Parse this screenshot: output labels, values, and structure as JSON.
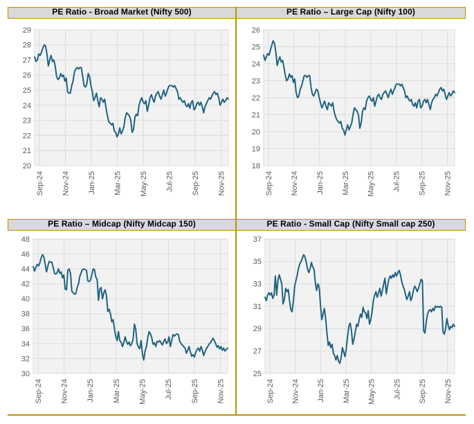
{
  "theme": {
    "accent_border_color": "#BF8F00",
    "titlebar_bg": "#D9D9D9",
    "line_color": "#1F6380",
    "plot_bg": "#F2F2F2",
    "grid_color": "#DBDBDB",
    "tick_label_color": "#595959",
    "title_text_color": "#000000",
    "page_bg": "#FFFFFF"
  },
  "chart_data": [
    {
      "type": "line",
      "title": "PE Ratio - Broad Market (Nifty 500)",
      "xlabel": "",
      "ylabel": "",
      "ylim": [
        20,
        29
      ],
      "y_ticks": [
        20,
        21,
        22,
        23,
        24,
        25,
        26,
        27,
        28,
        29
      ],
      "x_tick_labels": [
        "Sep-24",
        "Nov-24",
        "Jan-25",
        "Mar-25",
        "May-25",
        "Jul-25",
        "Sep-25",
        "Nov-25"
      ],
      "grid": "on",
      "legend": "none",
      "values": [
        27.2,
        26.9,
        27.0,
        27.4,
        27.3,
        27.5,
        27.8,
        28.0,
        27.9,
        27.4,
        26.6,
        27.0,
        27.3,
        26.9,
        27.0,
        26.6,
        25.9,
        25.7,
        25.8,
        26.1,
        25.9,
        26.0,
        25.6,
        25.8,
        24.9,
        24.8,
        24.8,
        25.3,
        25.6,
        26.2,
        26.4,
        26.5,
        26.4,
        26.5,
        26.5,
        25.9,
        25.3,
        25.2,
        25.4,
        26.1,
        25.9,
        25.3,
        24.9,
        24.3,
        24.5,
        24.8,
        24.3,
        23.9,
        24.5,
        24.4,
        24.2,
        24.4,
        23.8,
        23.3,
        22.9,
        22.8,
        22.7,
        22.8,
        22.3,
        22.2,
        21.9,
        22.1,
        22.5,
        22.1,
        22.3,
        22.6,
        23.2,
        23.5,
        23.4,
        23.3,
        23.0,
        22.2,
        22.4,
        23.2,
        23.4,
        23.3,
        24.0,
        24.3,
        24.5,
        24.2,
        24.1,
        24.3,
        23.6,
        24.0,
        24.5,
        24.7,
        24.4,
        24.2,
        24.6,
        24.8,
        24.9,
        24.6,
        24.4,
        24.7,
        25.0,
        24.6,
        24.8,
        25.1,
        25.3,
        25.3,
        25.3,
        25.2,
        25.3,
        25.1,
        24.9,
        24.4,
        24.5,
        24.3,
        24.2,
        24.3,
        24.0,
        23.9,
        24.1,
        23.8,
        24.2,
        24.3,
        23.7,
        23.8,
        24.1,
        24.2,
        24.0,
        24.2,
        23.9,
        23.5,
        23.9,
        24.1,
        24.3,
        24.5,
        24.4,
        24.6,
        24.8,
        24.9,
        24.7,
        24.8,
        24.5,
        24.0,
        24.2,
        24.4,
        24.2,
        24.3,
        24.5,
        24.4
      ]
    },
    {
      "type": "line",
      "title": "PE Ratio – Large Cap (Nifty 100)",
      "xlabel": "",
      "ylabel": "",
      "ylim": [
        18,
        26
      ],
      "y_ticks": [
        18,
        19,
        20,
        21,
        22,
        23,
        24,
        25,
        26
      ],
      "x_tick_labels": [
        "Sep-24",
        "Nov-24",
        "Jan-25",
        "Mar-25",
        "May-25",
        "Jul-25",
        "Sep-25",
        "Nov-25"
      ],
      "grid": "on",
      "legend": "none",
      "values": [
        24.5,
        24.2,
        24.4,
        24.6,
        24.5,
        24.8,
        25.1,
        25.35,
        25.2,
        24.7,
        23.9,
        24.2,
        24.4,
        24.1,
        24.2,
        23.8,
        23.3,
        23.0,
        23.1,
        23.4,
        23.2,
        23.3,
        22.9,
        23.1,
        22.3,
        22.0,
        22.1,
        22.5,
        22.7,
        23.0,
        23.3,
        23.3,
        23.2,
        23.3,
        23.3,
        22.6,
        22.2,
        22.1,
        22.3,
        22.5,
        22.4,
        22.0,
        21.7,
        21.4,
        21.6,
        21.8,
        21.5,
        21.3,
        21.7,
        21.6,
        21.5,
        21.7,
        21.2,
        20.9,
        20.7,
        20.6,
        20.5,
        20.6,
        20.2,
        20.1,
        19.8,
        20.1,
        20.4,
        20.1,
        20.3,
        20.5,
        21.0,
        21.4,
        21.3,
        21.2,
        21.0,
        20.2,
        20.5,
        21.2,
        21.4,
        21.3,
        21.8,
        22.0,
        22.1,
        21.9,
        21.8,
        22.0,
        21.5,
        21.8,
        22.1,
        22.2,
        22.0,
        21.9,
        22.2,
        22.3,
        22.4,
        22.2,
        22.0,
        22.3,
        22.5,
        22.2,
        22.4,
        22.6,
        22.8,
        22.8,
        22.8,
        22.7,
        22.8,
        22.6,
        22.4,
        22.0,
        22.1,
        21.9,
        21.8,
        21.9,
        21.6,
        21.5,
        21.7,
        21.4,
        21.8,
        21.9,
        21.4,
        21.5,
        21.8,
        21.9,
        21.7,
        21.9,
        21.6,
        21.3,
        21.7,
        21.9,
        22.0,
        22.2,
        22.1,
        22.3,
        22.5,
        22.6,
        22.4,
        22.5,
        22.2,
        21.9,
        22.1,
        22.3,
        22.1,
        22.2,
        22.4,
        22.3
      ]
    },
    {
      "type": "line",
      "title": "PE Ratio – Midcap (Nifty Midcap 150)",
      "xlabel": "",
      "ylabel": "",
      "ylim": [
        30,
        48
      ],
      "y_ticks": [
        30,
        32,
        34,
        36,
        38,
        40,
        42,
        44,
        46,
        48
      ],
      "x_tick_labels": [
        "Sep-24",
        "Nov-24",
        "Jan-25",
        "Mar-25",
        "May-25",
        "Jul-25",
        "Sep-25",
        "Nov-25"
      ],
      "grid": "on",
      "legend": "none",
      "values": [
        44.3,
        43.7,
        44.2,
        44.6,
        44.4,
        44.8,
        45.5,
        45.9,
        45.6,
        44.6,
        43.6,
        44.4,
        45.0,
        44.9,
        44.9,
        44.2,
        43.4,
        43.3,
        43.5,
        44.0,
        43.4,
        43.6,
        42.8,
        43.2,
        41.3,
        41.2,
        43.8,
        44.0,
        43.4,
        41.0,
        40.8,
        40.6,
        40.7,
        41.5,
        42.0,
        43.0,
        43.5,
        43.9,
        44.0,
        43.9,
        43.8,
        42.4,
        42.3,
        42.5,
        43.2,
        44.0,
        43.9,
        42.9,
        42.6,
        39.8,
        41.3,
        41.5,
        40.0,
        40.8,
        41.2,
        40.4,
        38.3,
        38.6,
        38.0,
        36.9,
        37.2,
        36.0,
        34.9,
        34.4,
        35.6,
        34.4,
        34.2,
        33.6,
        34.1,
        34.9,
        34.3,
        33.9,
        34.2,
        33.7,
        34.0,
        34.6,
        36.6,
        35.9,
        34.0,
        33.5,
        33.3,
        34.4,
        32.6,
        31.8,
        33.0,
        33.6,
        34.8,
        35.6,
        35.3,
        34.8,
        33.9,
        34.1,
        33.6,
        34.3,
        34.2,
        34.4,
        34.1,
        33.8,
        34.3,
        34.6,
        34.0,
        34.2,
        34.9,
        33.6,
        34.4,
        35.2,
        35.0,
        35.2,
        35.3,
        35.2,
        34.3,
        34.0,
        33.8,
        33.6,
        33.4,
        32.7,
        33.1,
        33.6,
        32.9,
        32.3,
        32.5,
        32.2,
        32.8,
        33.2,
        33.4,
        33.0,
        33.6,
        33.1,
        32.4,
        32.9,
        33.3,
        33.6,
        33.9,
        34.1,
        34.4,
        34.7,
        34.4,
        34.0,
        33.5,
        33.7,
        33.3,
        33.6,
        33.1,
        33.4,
        33.0,
        33.2,
        33.4
      ]
    },
    {
      "type": "line",
      "title": "PE Ratio - Small Cap (Nifty Small cap 250)",
      "xlabel": "",
      "ylabel": "",
      "ylim": [
        25,
        37
      ],
      "y_ticks": [
        25,
        27,
        29,
        31,
        33,
        35,
        37
      ],
      "x_tick_labels": [
        "Sep-24",
        "Nov-24",
        "Jan-25",
        "Mar-25",
        "May-25",
        "Jul-25",
        "Sep-25",
        "Nov-25"
      ],
      "grid": "on",
      "legend": "none",
      "values": [
        31.8,
        31.5,
        32.0,
        32.2,
        32.0,
        32.2,
        31.7,
        32.0,
        33.7,
        32.0,
        33.3,
        33.8,
        33.4,
        33.0,
        31.2,
        31.6,
        32.6,
        32.3,
        32.5,
        31.5,
        30.7,
        30.5,
        31.5,
        32.8,
        33.3,
        33.8,
        34.4,
        34.8,
        35.0,
        35.3,
        35.6,
        35.4,
        34.9,
        34.3,
        34.0,
        34.4,
        34.9,
        34.5,
        34.3,
        33.1,
        32.4,
        33.0,
        32.7,
        31.1,
        29.8,
        30.3,
        30.8,
        29.9,
        28.6,
        27.5,
        27.8,
        27.3,
        27.6,
        26.8,
        26.6,
        26.2,
        26.6,
        26.1,
        25.9,
        26.4,
        27.3,
        26.9,
        26.5,
        27.2,
        28.3,
        29.2,
        29.5,
        28.8,
        27.6,
        28.1,
        28.7,
        29.4,
        29.2,
        29.8,
        30.3,
        30.0,
        30.9,
        30.5,
        30.4,
        29.9,
        30.6,
        29.4,
        29.8,
        30.5,
        31.5,
        32.0,
        32.3,
        31.8,
        32.2,
        32.6,
        31.9,
        32.4,
        33.0,
        33.5,
        32.1,
        32.8,
        33.4,
        33.7,
        33.5,
        33.8,
        33.6,
        34.0,
        33.7,
        34.0,
        34.2,
        33.8,
        33.2,
        32.8,
        32.5,
        32.0,
        31.6,
        31.9,
        32.3,
        31.5,
        31.8,
        32.4,
        32.8,
        32.6,
        32.3,
        32.6,
        33.0,
        33.4,
        33.3,
        28.8,
        28.6,
        29.6,
        30.3,
        30.6,
        30.7,
        30.5,
        30.8,
        30.6,
        31.0,
        30.9,
        31.0,
        30.9,
        31.0,
        30.9,
        28.7,
        28.5,
        29.0,
        29.9,
        29.3,
        28.9,
        29.2,
        29.1,
        29.4,
        29.2
      ]
    }
  ]
}
